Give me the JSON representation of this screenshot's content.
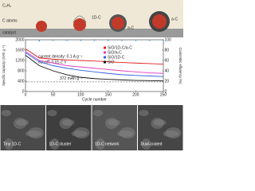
{
  "schematic": {
    "labels": [
      "C₂H₂",
      "C atoms",
      "catalyst",
      "1D-C",
      "a-C",
      "a-C"
    ]
  },
  "chart_data": {
    "type": "line",
    "x": [
      0,
      25,
      50,
      75,
      100,
      125,
      150,
      175,
      200,
      225,
      250
    ],
    "series": [
      {
        "name": "SiO/1D-C/a-C",
        "color": "#e0201c",
        "values": [
          1650,
          1300,
          1250,
          1220,
          1200,
          1180,
          1150,
          1120,
          1100,
          1080,
          1060
        ]
      },
      {
        "name": "SiO/a-C",
        "color": "#e040c0",
        "values": [
          1550,
          1200,
          1100,
          1000,
          950,
          900,
          850,
          800,
          760,
          720,
          700
        ]
      },
      {
        "name": "SiO/1D-C",
        "color": "#3060e0",
        "values": [
          1500,
          1150,
          1000,
          900,
          820,
          760,
          700,
          650,
          620,
          600,
          580
        ]
      },
      {
        "name": "SiO",
        "color": "#111111",
        "values": [
          1400,
          1000,
          800,
          650,
          550,
          500,
          470,
          450,
          430,
          420,
          410
        ]
      },
      {
        "color": "#4aa0e0",
        "axis": "y2",
        "values": [
          75,
          98,
          99,
          99,
          99,
          99,
          99,
          99,
          99,
          99,
          99
        ]
      }
    ],
    "xlabel": "Cycle number",
    "ylabel": "Specific capacity (mAh g⁻¹)",
    "y2label": "Coulombic efficiency (%)",
    "xlim": [
      0,
      250
    ],
    "xticks": [
      0,
      50,
      100,
      150,
      200,
      250
    ],
    "ylim": [
      0,
      2000
    ],
    "yticks": [
      0,
      400,
      800,
      1200,
      1600,
      2000
    ],
    "y2lim": [
      0,
      100
    ],
    "y2ticks": [
      0,
      20,
      40,
      60,
      80,
      100
    ],
    "reference_line": 372,
    "annotations": [
      "current density: 0.1 A g⁻¹",
      "cut-off: 0.01-2 V",
      "372 mAh g⁻¹"
    ]
  },
  "sem_panels": [
    {
      "label": "Tiny 1D-C"
    },
    {
      "label": "1D-C cluster"
    },
    {
      "label": "1D-C network"
    },
    {
      "label": "Dual-coated"
    }
  ]
}
